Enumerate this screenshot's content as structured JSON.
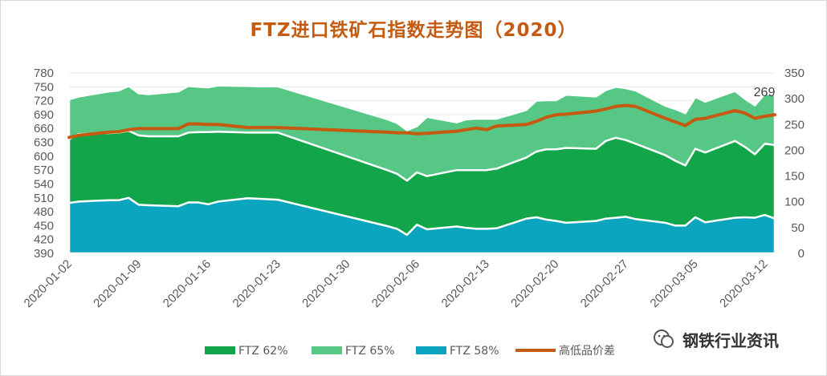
{
  "title": "FTZ进口铁矿石指数走势图（2020）",
  "watermark": "钢铁行业资讯",
  "colors": {
    "ftz65": "#57c785",
    "ftz62": "#13a54a",
    "ftz58": "#0ca5c0",
    "spread": "#c55a11"
  },
  "chart_data": {
    "type": "area",
    "x_ticks": [
      "2020-01-02",
      "2020-01-09",
      "2020-01-16",
      "2020-01-23",
      "2020-01-30",
      "2020-02-06",
      "2020-02-13",
      "2020-02-20",
      "2020-02-27",
      "2020-03-05",
      "2020-03-12"
    ],
    "x_range": [
      "2020-01-02",
      "2020-03-13"
    ],
    "y_left": {
      "min": 390,
      "max": 780,
      "ticks": [
        390,
        420,
        450,
        480,
        510,
        540,
        570,
        600,
        630,
        660,
        690,
        720,
        750,
        780
      ]
    },
    "y_right": {
      "min": 0,
      "max": 350,
      "ticks": [
        0,
        50,
        100,
        150,
        200,
        250,
        300,
        350
      ]
    },
    "legend": [
      "FTZ 62%",
      "FTZ 65%",
      "FTZ 58%",
      "高低品价差"
    ],
    "legend_position": "bottom",
    "dates": [
      "2020-01-02",
      "2020-01-03",
      "2020-01-06",
      "2020-01-07",
      "2020-01-08",
      "2020-01-09",
      "2020-01-10",
      "2020-01-13",
      "2020-01-14",
      "2020-01-15",
      "2020-01-16",
      "2020-01-17",
      "2020-01-20",
      "2020-01-21",
      "2020-01-22",
      "2020-01-23",
      "2020-02-03",
      "2020-02-04",
      "2020-02-05",
      "2020-02-06",
      "2020-02-07",
      "2020-02-10",
      "2020-02-11",
      "2020-02-12",
      "2020-02-13",
      "2020-02-14",
      "2020-02-17",
      "2020-02-18",
      "2020-02-19",
      "2020-02-20",
      "2020-02-21",
      "2020-02-24",
      "2020-02-25",
      "2020-02-26",
      "2020-02-27",
      "2020-02-28",
      "2020-03-02",
      "2020-03-03",
      "2020-03-04",
      "2020-03-05",
      "2020-03-06",
      "2020-03-09",
      "2020-03-10",
      "2020-03-11",
      "2020-03-12",
      "2020-03-13"
    ],
    "series": [
      {
        "name": "FTZ 65%",
        "axis": "left",
        "values": [
          723,
          729,
          740,
          742,
          752,
          736,
          734,
          740,
          752,
          750,
          749,
          753,
          752,
          751,
          751,
          751,
          680,
          672,
          656,
          665,
          685,
          673,
          680,
          681,
          681,
          681,
          700,
          720,
          721,
          721,
          733,
          729,
          743,
          750,
          747,
          742,
          709,
          702,
          693,
          728,
          718,
          741,
          724,
          710,
          735,
          733
        ]
      },
      {
        "name": "FTZ 62%",
        "axis": "left",
        "values": [
          637,
          648,
          650,
          651,
          655,
          645,
          643,
          643,
          651,
          652,
          652,
          653,
          651,
          651,
          651,
          651,
          570,
          562,
          547,
          565,
          557,
          570,
          570,
          570,
          570,
          573,
          597,
          610,
          615,
          615,
          618,
          616,
          633,
          640,
          635,
          627,
          602,
          590,
          580,
          616,
          608,
          633,
          620,
          604,
          627,
          624
        ]
      },
      {
        "name": "FTZ 58%",
        "axis": "left",
        "values": [
          499,
          502,
          505,
          505,
          510,
          495,
          494,
          492,
          500,
          500,
          496,
          502,
          509,
          508,
          507,
          506,
          449,
          443,
          430,
          452,
          442,
          448,
          445,
          443,
          443,
          444,
          465,
          468,
          463,
          460,
          456,
          460,
          465,
          467,
          469,
          464,
          456,
          450,
          450,
          468,
          457,
          467,
          468,
          467,
          473,
          465
        ]
      },
      {
        "name": "高低品价差",
        "axis": "right",
        "values": [
          225,
          229,
          235,
          236,
          240,
          242,
          242,
          242,
          251,
          251,
          250,
          250,
          244,
          244,
          244,
          244,
          235,
          234,
          234,
          232,
          233,
          237,
          240,
          243,
          240,
          247,
          250,
          256,
          264,
          269,
          270,
          276,
          280,
          285,
          287,
          285,
          262,
          255,
          248,
          260,
          262,
          277,
          272,
          262,
          266,
          269
        ]
      }
    ],
    "data_labels": [
      {
        "series": "高低品价差",
        "index": 45,
        "text": "269"
      }
    ]
  }
}
